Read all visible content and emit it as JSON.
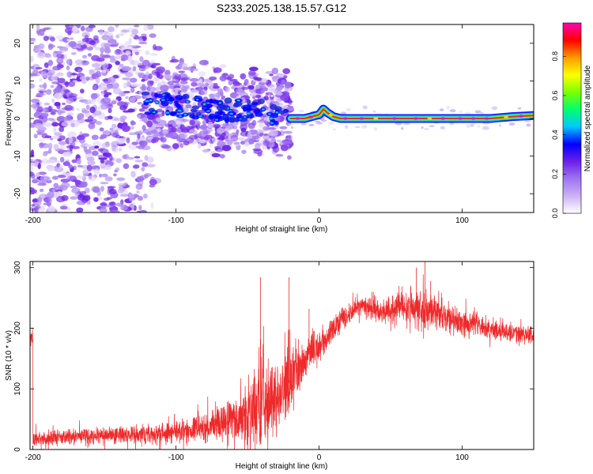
{
  "title": "S233.2025.138.15.57.G12",
  "colors": {
    "snr_line": "#ee2a2a",
    "track_line": "#ee2a2a",
    "axis": "#000000",
    "colormap": [
      "#ffffff",
      "#cbb2f6",
      "#9e74f0",
      "#6a20e8",
      "#0000ff",
      "#00c8ff",
      "#00ff6e",
      "#7dff00",
      "#ffff00",
      "#ff9a00",
      "#ff0000",
      "#ff00b0"
    ]
  },
  "chart_data": [
    {
      "type": "heatmap",
      "title": "S233.2025.138.15.57.G12",
      "xlabel": "Height of straight line (km)",
      "ylabel": "Frequency (Hz)",
      "xlim": [
        -202,
        150
      ],
      "ylim": [
        -25,
        25
      ],
      "xticks": [
        -200,
        -100,
        0,
        100
      ],
      "yticks": [
        20,
        10,
        0,
        -10,
        -20
      ],
      "colorbar": {
        "label": "Normalized spectral amplitude",
        "range": [
          0,
          0.97
        ],
        "ticks": [
          "0.0",
          "0.2",
          "0.4",
          "0.6",
          "0.8"
        ],
        "tick_values": [
          0,
          0.2,
          0.4,
          0.6,
          0.8
        ]
      },
      "ridge": {
        "description_free": true,
        "x": [
          -20,
          -10,
          -5,
          0,
          3,
          6,
          10,
          15,
          20,
          40,
          60,
          80,
          100,
          120,
          135,
          150
        ],
        "frequency": [
          0,
          0,
          0.5,
          1,
          2.5,
          1.5,
          0.5,
          0,
          0,
          0,
          0,
          0,
          0,
          0,
          0.5,
          0.8
        ]
      },
      "grid": false
    },
    {
      "type": "line",
      "xlabel": "Height of straight line (km)",
      "ylabel": "SNR (10 * v/v)",
      "xlim": [
        -202,
        150
      ],
      "ylim": [
        0,
        310
      ],
      "xticks": [
        -200,
        -100,
        0,
        100
      ],
      "yticks": [
        0,
        100,
        200,
        300
      ],
      "series": [
        {
          "x": [
            -200,
            -180,
            -160,
            -140,
            -120,
            -100,
            -90,
            -80,
            -70,
            -60,
            -55,
            -50,
            -45,
            -40,
            -35,
            -30,
            -25,
            -20,
            -15,
            -10,
            -5,
            0,
            5,
            10,
            15,
            20,
            25,
            30,
            40,
            50,
            60,
            70,
            75,
            80,
            90,
            100,
            110,
            120,
            130,
            140,
            150
          ],
          "values": [
            18,
            20,
            22,
            24,
            25,
            28,
            32,
            36,
            42,
            50,
            55,
            60,
            66,
            72,
            78,
            86,
            98,
            112,
            128,
            148,
            162,
            170,
            180,
            198,
            212,
            218,
            232,
            240,
            228,
            232,
            236,
            230,
            228,
            225,
            218,
            208,
            205,
            198,
            195,
            190,
            188
          ],
          "spread": [
            12,
            14,
            14,
            15,
            16,
            18,
            22,
            25,
            28,
            35,
            45,
            60,
            70,
            70,
            70,
            65,
            60,
            55,
            50,
            40,
            35,
            30,
            25,
            22,
            20,
            18,
            16,
            16,
            16,
            22,
            24,
            32,
            34,
            30,
            26,
            22,
            20,
            20,
            18,
            16,
            16
          ],
          "spikes": [
            [
              -41,
              284
            ],
            [
              -21,
              284
            ],
            [
              -7,
              232
            ],
            [
              74,
              310
            ],
            [
              68,
              300
            ],
            [
              64,
              268
            ],
            [
              78,
              278
            ]
          ]
        }
      ],
      "grid": false
    }
  ]
}
